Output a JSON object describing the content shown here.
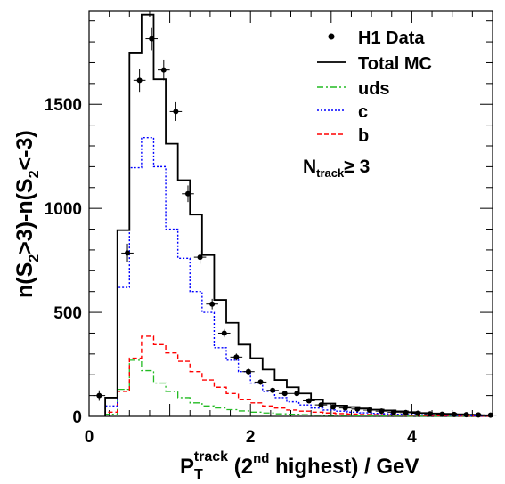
{
  "chart_data": {
    "type": "line",
    "xlim": [
      0,
      5
    ],
    "ylim": [
      0,
      1950
    ],
    "x_ticks": [
      "0",
      "2",
      "4"
    ],
    "y_ticks": [
      "0",
      "500",
      "1000",
      "1500"
    ],
    "x_tick_values": [
      0,
      2,
      4
    ],
    "y_tick_values": [
      0,
      500,
      1000,
      1500
    ],
    "grid": false,
    "legend_position": "top-right",
    "bin_edges": [
      0.2,
      0.35,
      0.5,
      0.65,
      0.8,
      0.95,
      1.1,
      1.25,
      1.4,
      1.55,
      1.7,
      1.85,
      2.0,
      2.15,
      2.3,
      2.45,
      2.6,
      2.75,
      2.9,
      3.05,
      3.2,
      3.35,
      3.5,
      3.65,
      3.8,
      3.95,
      4.1,
      4.25,
      4.4,
      4.55,
      4.7,
      4.85,
      5.0
    ],
    "series": [
      {
        "name": "Total MC",
        "style": "solid",
        "color": "#000000",
        "values": [
          90,
          895,
          1745,
          1930,
          1620,
          1310,
          1135,
          970,
          775,
          560,
          450,
          345,
          280,
          225,
          175,
          140,
          110,
          80,
          62,
          52,
          45,
          38,
          32,
          28,
          24,
          20,
          16,
          14,
          12,
          10,
          8,
          5
        ]
      },
      {
        "name": "uds",
        "style": "dashdot",
        "color": "#22bb22",
        "values": [
          10,
          130,
          270,
          220,
          160,
          120,
          90,
          65,
          50,
          40,
          32,
          26,
          20,
          16,
          12,
          10,
          8,
          6,
          5,
          4,
          3,
          3,
          2,
          2,
          2,
          1,
          1,
          1,
          1,
          1,
          1,
          1
        ]
      },
      {
        "name": "c",
        "style": "dotted",
        "color": "#0000ff",
        "values": [
          50,
          620,
          1195,
          1340,
          1200,
          900,
          760,
          600,
          500,
          330,
          270,
          215,
          160,
          120,
          90,
          70,
          55,
          40,
          30,
          25,
          20,
          17,
          14,
          12,
          10,
          8,
          7,
          6,
          5,
          4,
          3,
          2
        ]
      },
      {
        "name": "b",
        "style": "dashed",
        "color": "#ff0000",
        "values": [
          20,
          120,
          280,
          385,
          345,
          305,
          265,
          215,
          175,
          140,
          110,
          80,
          65,
          50,
          40,
          30,
          25,
          20,
          16,
          13,
          11,
          9,
          8,
          7,
          6,
          5,
          4,
          3,
          3,
          2,
          2,
          1
        ]
      },
      {
        "name": "H1 Data",
        "style": "points",
        "color": "#000000",
        "x": [
          0.125,
          0.475,
          0.625,
          0.775,
          0.925,
          1.075,
          1.225,
          1.375,
          1.525,
          1.675,
          1.825,
          1.975,
          2.125,
          2.275,
          2.425,
          2.575,
          2.725,
          2.875,
          3.025,
          3.175,
          3.325,
          3.475,
          3.625,
          3.775,
          3.925,
          4.075,
          4.225,
          4.375,
          4.525,
          4.675,
          4.825,
          4.975
        ],
        "values": [
          100,
          785,
          1615,
          1815,
          1665,
          1465,
          1070,
          765,
          540,
          400,
          285,
          215,
          165,
          125,
          110,
          110,
          75,
          55,
          45,
          40,
          35,
          30,
          25,
          20,
          18,
          15,
          12,
          10,
          9,
          8,
          7,
          6
        ],
        "errors": [
          25,
          45,
          55,
          55,
          50,
          45,
          40,
          32,
          25,
          20,
          17,
          15,
          13,
          11,
          10,
          10,
          9,
          8,
          7,
          7,
          6,
          6,
          5,
          5,
          5,
          4,
          4,
          4,
          3,
          3,
          3,
          3
        ]
      }
    ],
    "annotation": {
      "main": "N",
      "sub": "track",
      "rest": "≥ 3"
    },
    "ylabel": {
      "p1": "n(S",
      "s1": "2",
      "p2": ">3)-n(S",
      "s2": "2",
      "p3": "<-3)"
    },
    "xlabel": {
      "main": "P",
      "sub": "T",
      "sup": "track",
      "p2": " (2",
      "sup2": "nd",
      "p3": " highest)  / GeV"
    }
  }
}
